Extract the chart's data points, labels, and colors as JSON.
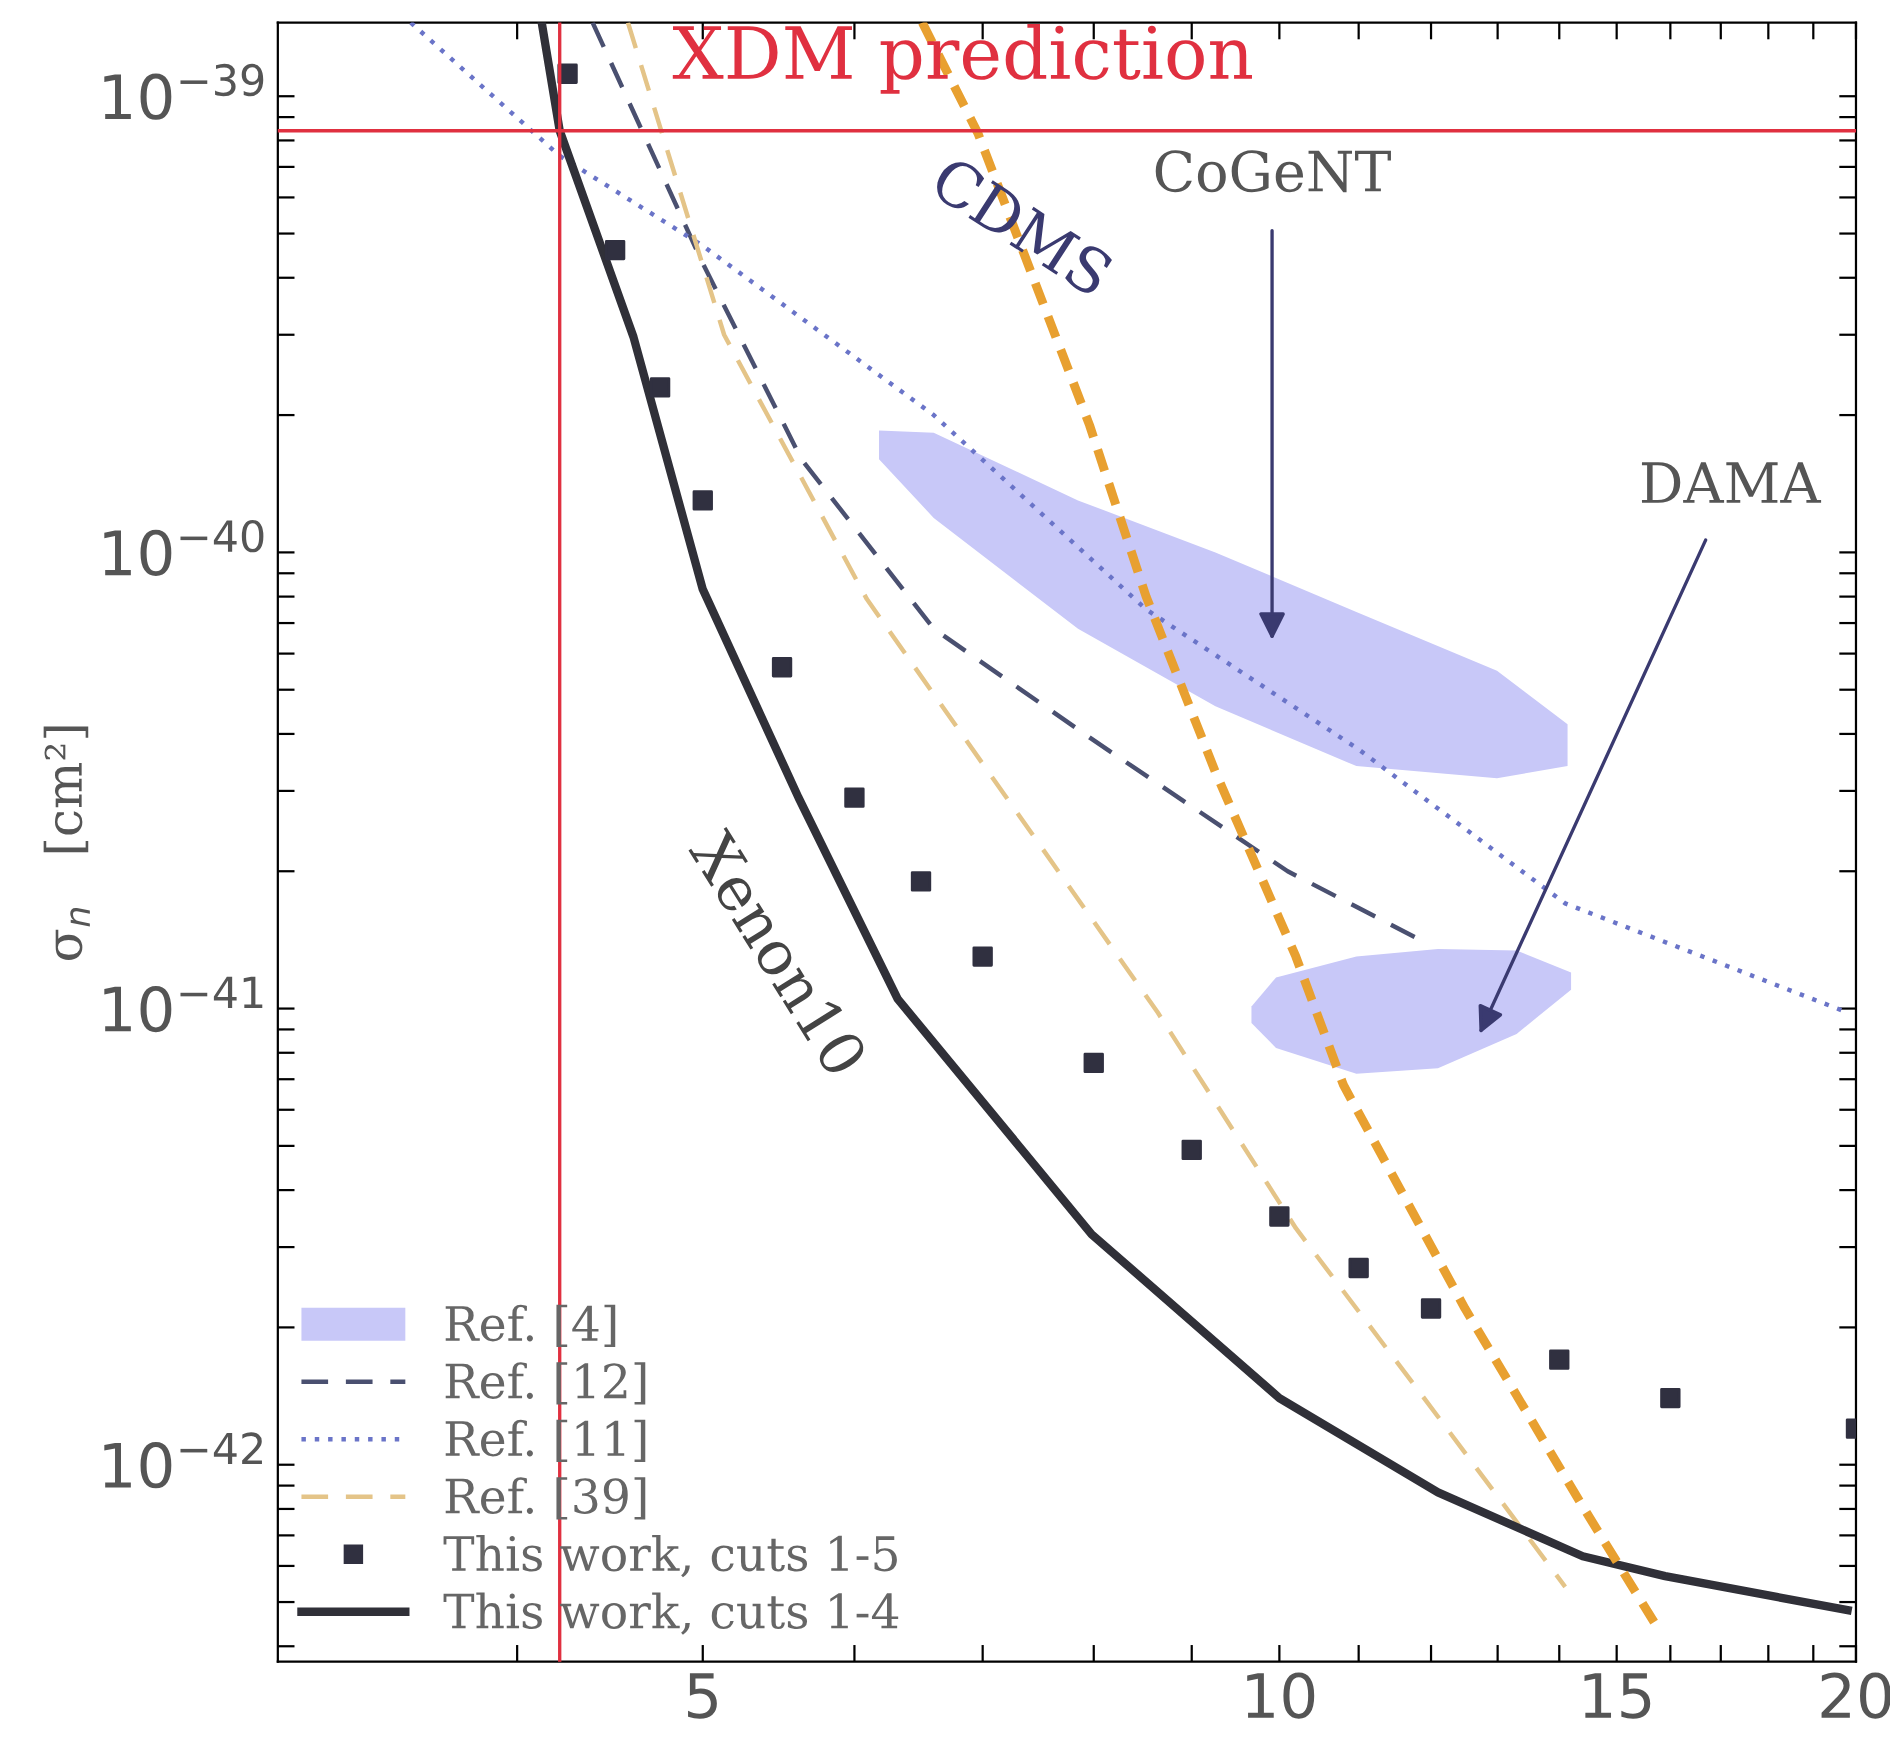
{
  "chart_data": {
    "type": "line",
    "ylabel": "σ$_{n}$   [cm²]",
    "log": "xy",
    "xlim": [
      3,
      20
    ],
    "ylim": [
      3.7e-43,
      1.45e-39
    ],
    "xticks": [
      {
        "value": 4,
        "label": null
      },
      5,
      {
        "value": 6,
        "label": null
      },
      {
        "value": 7,
        "label": null
      },
      {
        "value": 8,
        "label": null
      },
      {
        "value": 9,
        "label": null
      },
      10,
      {
        "value": 11,
        "label": null
      },
      {
        "value": 12,
        "label": null
      },
      {
        "value": 13,
        "label": null
      },
      {
        "value": 14,
        "label": null
      },
      15,
      {
        "value": 16,
        "label": null
      },
      {
        "value": 17,
        "label": null
      },
      {
        "value": 18,
        "label": null
      },
      {
        "value": 19,
        "label": null
      },
      20
    ],
    "yticks": [
      {
        "value": 4e-43,
        "label": null
      },
      {
        "value": 5e-43,
        "label": null
      },
      {
        "value": 6e-43,
        "label": null
      },
      {
        "value": 7e-43,
        "label": null
      },
      {
        "value": 8e-43,
        "label": null
      },
      {
        "value": 9e-43,
        "label": null
      },
      {
        "value": 1e-42,
        "label": "10$^{−42}$"
      },
      {
        "value": 2e-42,
        "label": null
      },
      {
        "value": 3e-42,
        "label": null
      },
      {
        "value": 4e-42,
        "label": null
      },
      {
        "value": 5e-42,
        "label": null
      },
      {
        "value": 6e-42,
        "label": null
      },
      {
        "value": 7e-42,
        "label": null
      },
      {
        "value": 8e-42,
        "label": null
      },
      {
        "value": 9e-42,
        "label": null
      },
      {
        "value": 1e-41,
        "label": "10$^{−41}$"
      },
      {
        "value": 2e-41,
        "label": null
      },
      {
        "value": 3e-41,
        "label": null
      },
      {
        "value": 4e-41,
        "label": null
      },
      {
        "value": 5e-41,
        "label": null
      },
      {
        "value": 6e-41,
        "label": null
      },
      {
        "value": 7e-41,
        "label": null
      },
      {
        "value": 8e-41,
        "label": null
      },
      {
        "value": 9e-41,
        "label": null
      },
      {
        "value": 1e-40,
        "label": "10$^{−40}$"
      },
      {
        "value": 2e-40,
        "label": null
      },
      {
        "value": 3e-40,
        "label": null
      },
      {
        "value": 4e-40,
        "label": null
      },
      {
        "value": 5e-40,
        "label": null
      },
      {
        "value": 6e-40,
        "label": null
      },
      {
        "value": 7e-40,
        "label": null
      },
      {
        "value": 8e-40,
        "label": null
      },
      {
        "value": 9e-40,
        "label": null
      },
      {
        "value": 1e-39,
        "label": "10$^{−39}$"
      }
    ],
    "grid": false,
    "legend": "bottom left",
    "ref_lines": [
      {
        "axis": "y",
        "value": 8.4e-40,
        "label": "XDM prediction",
        "color": "#e03040"
      },
      {
        "axis": "x",
        "value": 4.21,
        "label": null,
        "color": "#e03040"
      }
    ],
    "annotations": [
      "CDMS",
      "Xenon10",
      "CoGeNT",
      "DAMA"
    ],
    "series": [
      {
        "name": "Ref. [4]",
        "type": "area",
        "color": "#c8c8f8",
        "x": [
          6.18,
          6.6,
          7.85,
          9.26,
          10.97,
          12.99,
          14.14
        ],
        "values": [
          null,
          null,
          null,
          null,
          null,
          null,
          null
        ],
        "upper": [
          1.85e-40,
          1.83e-40,
          1.3e-40,
          1e-40,
          7.4e-41,
          5.5e-41,
          4.2e-41
        ],
        "lower": [
          1.6e-40,
          1.19e-40,
          6.8e-41,
          4.6e-41,
          3.4e-41,
          3.2e-41,
          3.4e-41
        ]
      },
      {
        "name": "Ref. [12]",
        "line_style": "dashed",
        "color": "#4a5070",
        "x": [
          4.38,
          5.0,
          5.63,
          6.6,
          7.98,
          10.1,
          11.9
        ],
        "values": [
          1.45e-39,
          4.3e-40,
          1.6e-40,
          6.8e-41,
          3.9e-41,
          2e-41,
          1.4e-41
        ]
      },
      {
        "name": "Ref. [11]",
        "line_style": "dotted",
        "color": "#6a74c8",
        "x": [
          3.52,
          4.21,
          5.0,
          6.6,
          8.52,
          11.0,
          14.1,
          19.8
        ],
        "values": [
          1.45e-39,
          7.4e-40,
          4.7e-40,
          2e-40,
          7.5e-41,
          3.7e-41,
          1.7e-41,
          9.8e-42
        ]
      },
      {
        "name": "Ref. [39]",
        "line_style": "dashed",
        "color": "#e4c488",
        "x": [
          4.57,
          5.13,
          6.09,
          8.64,
          10.2,
          11.9,
          14.1
        ],
        "values": [
          1.45e-39,
          3e-40,
          7.9e-41,
          9.8e-42,
          3.3e-42,
          1.4e-42,
          5.4e-43
        ]
      },
      {
        "name": "This work, cuts 1-5",
        "type": "scatter",
        "marker": "square",
        "color": "#303040",
        "x": [
          4.25,
          4.5,
          4.75,
          5,
          5.5,
          6,
          6.5,
          7,
          8,
          9,
          10,
          11,
          12,
          14,
          16,
          20
        ],
        "values": [
          1.12e-39,
          4.6e-40,
          2.3e-40,
          1.3e-40,
          5.6e-41,
          2.9e-41,
          1.9e-41,
          1.3e-41,
          7.6e-42,
          4.9e-42,
          3.5e-42,
          2.7e-42,
          2.2e-42,
          1.7e-42,
          1.4e-42,
          1.2e-42
        ]
      },
      {
        "name": "This work, cuts 1-4",
        "line_style": "solid",
        "color": "#303038",
        "x": [
          4.12,
          4.21,
          4.6,
          5.0,
          5.61,
          6.32,
          7.98,
          10.0,
          12.1,
          14.4,
          15.9,
          19.8
        ],
        "values": [
          1.45e-39,
          8.4e-40,
          2.97e-40,
          8.3e-41,
          2.9e-41,
          1.05e-41,
          3.2e-42,
          1.4e-42,
          8.7e-43,
          6.3e-43,
          5.7e-43,
          4.8e-43
        ]
      },
      {
        "type": "area",
        "color": "#c8c8f8",
        "x": [
          9.67,
          9.96,
          10.97,
          12.1,
          13.3,
          14.2
        ],
        "values": [
          null,
          null,
          null,
          null,
          null,
          null
        ],
        "upper": [
          1.01e-41,
          1.17e-41,
          1.3e-41,
          1.35e-41,
          1.34e-41,
          1.2e-41
        ],
        "lower": [
          9.3e-42,
          8.2e-42,
          7.2e-42,
          7.4e-42,
          8.8e-42,
          1.1e-41
        ]
      },
      {
        "line_style": "dashed",
        "color": "#e8a030",
        "x": [
          6.51,
          6.96,
          7.96,
          8.52,
          9.26,
          10.2,
          10.8,
          12.5,
          14.4,
          15.7
        ],
        "values": [
          1.45e-39,
          8.3e-40,
          1.9e-40,
          8e-41,
          3.3e-41,
          1.3e-41,
          6.8e-42,
          2.2e-42,
          8.1e-43,
          4.5e-43
        ]
      }
    ]
  }
}
